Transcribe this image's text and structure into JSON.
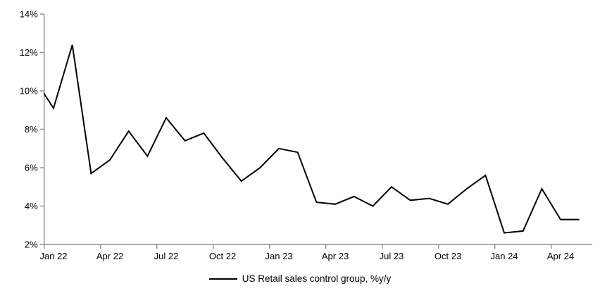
{
  "chart_data": {
    "type": "line",
    "title": "",
    "legend_label": "US Retail sales control group, %y/y",
    "legend_position": "bottom-center",
    "grid": false,
    "ylim": [
      2,
      14
    ],
    "y_tick_labels": [
      "2%",
      "4%",
      "6%",
      "8%",
      "10%",
      "12%",
      "14%"
    ],
    "y_tick_values": [
      2,
      4,
      6,
      8,
      10,
      12,
      14
    ],
    "x_tick_labels": [
      "Jan 22",
      "Apr 22",
      "Jul 22",
      "Oct 22",
      "Jan 23",
      "Apr 23",
      "Jul 23",
      "Oct 23",
      "Jan 24",
      "Apr 24"
    ],
    "x_label_interval_months": 3,
    "months": [
      "Jan 22",
      "Feb 22",
      "Mar 22",
      "Apr 22",
      "May 22",
      "Jun 22",
      "Jul 22",
      "Aug 22",
      "Sep 22",
      "Oct 22",
      "Nov 22",
      "Dec 22",
      "Jan 23",
      "Feb 23",
      "Mar 23",
      "Apr 23",
      "May 23",
      "Jun 23",
      "Jul 23",
      "Aug 23",
      "Sep 23",
      "Oct 23",
      "Nov 23",
      "Dec 23",
      "Jan 24",
      "Feb 24",
      "Mar 24",
      "Apr 24",
      "May 24"
    ],
    "values": [
      9.1,
      12.4,
      5.7,
      6.4,
      7.9,
      6.6,
      8.6,
      7.4,
      7.8,
      6.5,
      5.3,
      6.0,
      7.0,
      6.8,
      4.2,
      4.1,
      4.5,
      4.0,
      5.0,
      4.3,
      4.4,
      4.1,
      4.9,
      5.6,
      2.6,
      2.7,
      4.9,
      3.3,
      3.3
    ],
    "lead_in_point": {
      "month": "Dec 21",
      "value": 10.6,
      "note": "segment clipped at left axis, enters plot at ~9.9%"
    },
    "line_color": "#000000",
    "axis_color": "#8c8c8c",
    "text_color": "#000000",
    "background_color": "#ffffff"
  }
}
